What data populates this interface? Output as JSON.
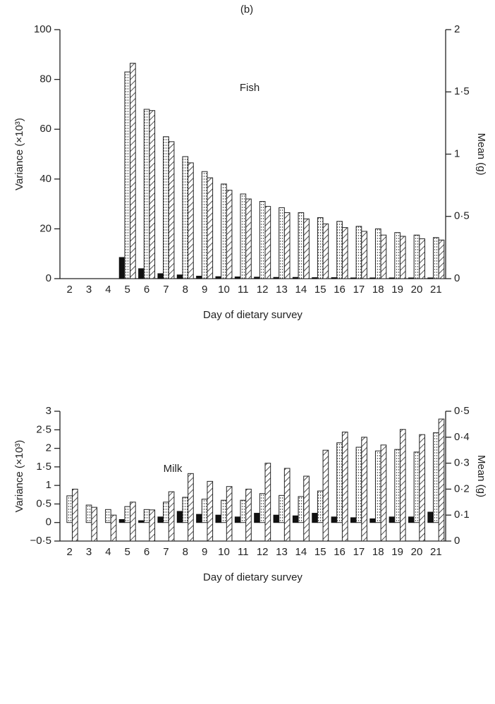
{
  "panel_label": "(b)",
  "chart_data": [
    {
      "type": "bar",
      "title": "Fish",
      "xlabel": "Day of dietary survey",
      "ylabel": "Variance (×10³)",
      "y2label": "Mean (g)",
      "categories": [
        "2",
        "3",
        "4",
        "5",
        "6",
        "7",
        "8",
        "9",
        "10",
        "11",
        "12",
        "13",
        "14",
        "15",
        "16",
        "17",
        "18",
        "19",
        "20",
        "21"
      ],
      "series": [
        {
          "color": "#111111",
          "pattern": "solid",
          "values": [
            0,
            0,
            0,
            8.5,
            4,
            2,
            1.5,
            1,
            0.8,
            0.7,
            0.6,
            0.5,
            0.5,
            0.4,
            0.4,
            0.3,
            0.3,
            0.3,
            0.3,
            0.3
          ]
        },
        {
          "color": "#222222",
          "pattern": "dotted",
          "values": [
            0,
            0,
            0,
            83,
            68,
            57,
            49,
            43,
            38,
            34,
            31,
            28.5,
            26.5,
            24.5,
            23,
            21,
            20,
            18.5,
            17.5,
            16.5
          ]
        },
        {
          "color": "#222222",
          "pattern": "hatched",
          "axis": "y2",
          "values": [
            0,
            0,
            0,
            1.73,
            1.35,
            1.1,
            0.93,
            0.81,
            0.71,
            0.64,
            0.58,
            0.53,
            0.48,
            0.44,
            0.41,
            0.38,
            0.35,
            0.34,
            0.32,
            0.31
          ]
        }
      ],
      "ylim": [
        0,
        100
      ],
      "yticks": [
        0,
        20,
        40,
        60,
        80,
        100
      ],
      "y2lim": [
        0,
        2
      ],
      "y2ticks": [
        0,
        {
          "value": 0.5,
          "label": "0·5"
        },
        1,
        {
          "value": 1.5,
          "label": "1·5"
        },
        2
      ]
    },
    {
      "type": "bar",
      "title": "Milk",
      "xlabel": "Day of dietary survey",
      "ylabel": "Variance (×10³)",
      "y2label": "Mean (g)",
      "categories": [
        "2",
        "3",
        "4",
        "5",
        "6",
        "7",
        "8",
        "9",
        "10",
        "11",
        "12",
        "13",
        "14",
        "15",
        "16",
        "17",
        "18",
        "19",
        "20",
        "21"
      ],
      "series": [
        {
          "color": "#111111",
          "pattern": "solid",
          "values": [
            0,
            0,
            0,
            0.08,
            0.05,
            0.15,
            0.3,
            0.22,
            0.2,
            0.15,
            0.25,
            0.2,
            0.18,
            0.25,
            0.15,
            0.13,
            0.1,
            0.15,
            0.15,
            0.28
          ]
        },
        {
          "color": "#222222",
          "pattern": "dotted",
          "values": [
            0.72,
            0.47,
            0.35,
            0.43,
            0.35,
            0.55,
            0.68,
            0.63,
            0.6,
            0.6,
            0.78,
            0.73,
            0.7,
            0.85,
            2.15,
            2.03,
            1.93,
            1.97,
            1.9,
            2.42
          ]
        },
        {
          "color": "#222222",
          "pattern": "hatched",
          "axis": "y2",
          "values": [
            0.2,
            0.13,
            0.1,
            0.15,
            0.12,
            0.19,
            0.26,
            0.23,
            0.21,
            0.2,
            0.3,
            0.28,
            0.25,
            0.35,
            0.42,
            0.4,
            0.37,
            0.43,
            0.41,
            0.47
          ]
        }
      ],
      "ylim": [
        -0.5,
        3
      ],
      "yticks": [
        {
          "value": -0.5,
          "label": "−0·5"
        },
        0,
        {
          "value": 0.5,
          "label": "0·5"
        },
        1,
        {
          "value": 1.5,
          "label": "1·5"
        },
        2,
        {
          "value": 2.5,
          "label": "2·5"
        },
        3
      ],
      "y2lim": [
        0,
        0.5
      ],
      "y2ticks": [
        0,
        {
          "value": 0.1,
          "label": "0·1"
        },
        {
          "value": 0.2,
          "label": "0·2"
        },
        {
          "value": 0.3,
          "label": "0·3"
        },
        {
          "value": 0.4,
          "label": "0·4"
        },
        {
          "value": 0.5,
          "label": "0·5"
        }
      ]
    }
  ]
}
